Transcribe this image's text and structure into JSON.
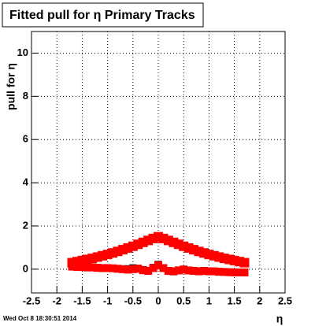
{
  "chart_data": {
    "type": "scatter",
    "title": "Fitted pull for  η  Primary Tracks",
    "y_label": "pull for η",
    "x_label": "η",
    "date": "Wed Oct  8 18:30:51 2014",
    "x": [
      -1.7,
      -1.6,
      -1.5,
      -1.4,
      -1.3,
      -1.2,
      -1.1,
      -1.0,
      -0.9,
      -0.8,
      -0.7,
      -0.6,
      -0.5,
      -0.4,
      -0.3,
      -0.2,
      -0.1,
      0,
      0.1,
      0.2,
      0.3,
      0.4,
      0.5,
      0.6,
      0.7,
      0.8,
      0.9,
      1.0,
      1.1,
      1.2,
      1.3,
      1.4,
      1.5,
      1.6,
      1.7
    ],
    "series": [
      {
        "color": "#000000",
        "marker_size": 9,
        "values": [
          0.18,
          0.15,
          0.12,
          0.1,
          0.1,
          0.08,
          0.06,
          0.05,
          0.04,
          0.02,
          0.0,
          0.02,
          0.06,
          0.04,
          -0.02,
          -0.06,
          0.08,
          0.22,
          0.06,
          -0.1,
          -0.12,
          -0.04,
          0.0,
          -0.05,
          -0.08,
          -0.09,
          -0.07,
          -0.1,
          -0.1,
          -0.11,
          -0.12,
          -0.13,
          -0.14,
          -0.15,
          -0.15
        ]
      },
      {
        "color": "#ff0000",
        "marker_size": 12,
        "values": [
          0.3,
          0.35,
          0.4,
          0.45,
          0.5,
          0.56,
          0.62,
          0.68,
          0.75,
          0.82,
          0.9,
          0.98,
          1.06,
          1.15,
          1.24,
          1.33,
          1.42,
          1.5,
          1.42,
          1.33,
          1.24,
          1.15,
          1.06,
          0.98,
          0.9,
          0.82,
          0.75,
          0.68,
          0.62,
          0.56,
          0.5,
          0.45,
          0.4,
          0.35,
          0.3
        ]
      },
      {
        "color": "#ff0000",
        "marker_size": 10,
        "values": [
          0.12,
          0.1,
          0.1,
          0.08,
          0.08,
          0.06,
          0.05,
          0.05,
          0.04,
          0.02,
          0.0,
          -0.02,
          0.0,
          0.02,
          -0.05,
          -0.08,
          0.05,
          0.18,
          0.05,
          -0.08,
          -0.1,
          -0.06,
          -0.02,
          -0.06,
          -0.08,
          -0.1,
          -0.08,
          -0.1,
          -0.1,
          -0.12,
          -0.13,
          -0.14,
          -0.15,
          -0.15,
          -0.15
        ]
      }
    ],
    "xlim": [
      -2.5,
      2.5
    ],
    "ylim": [
      -1.1,
      11
    ],
    "xticks": [
      -2.5,
      -2,
      -1.5,
      -1,
      -0.5,
      0,
      0.5,
      1,
      1.5,
      2,
      2.5
    ],
    "yticks": [
      0,
      2,
      4,
      6,
      8,
      10
    ],
    "grid": true
  }
}
